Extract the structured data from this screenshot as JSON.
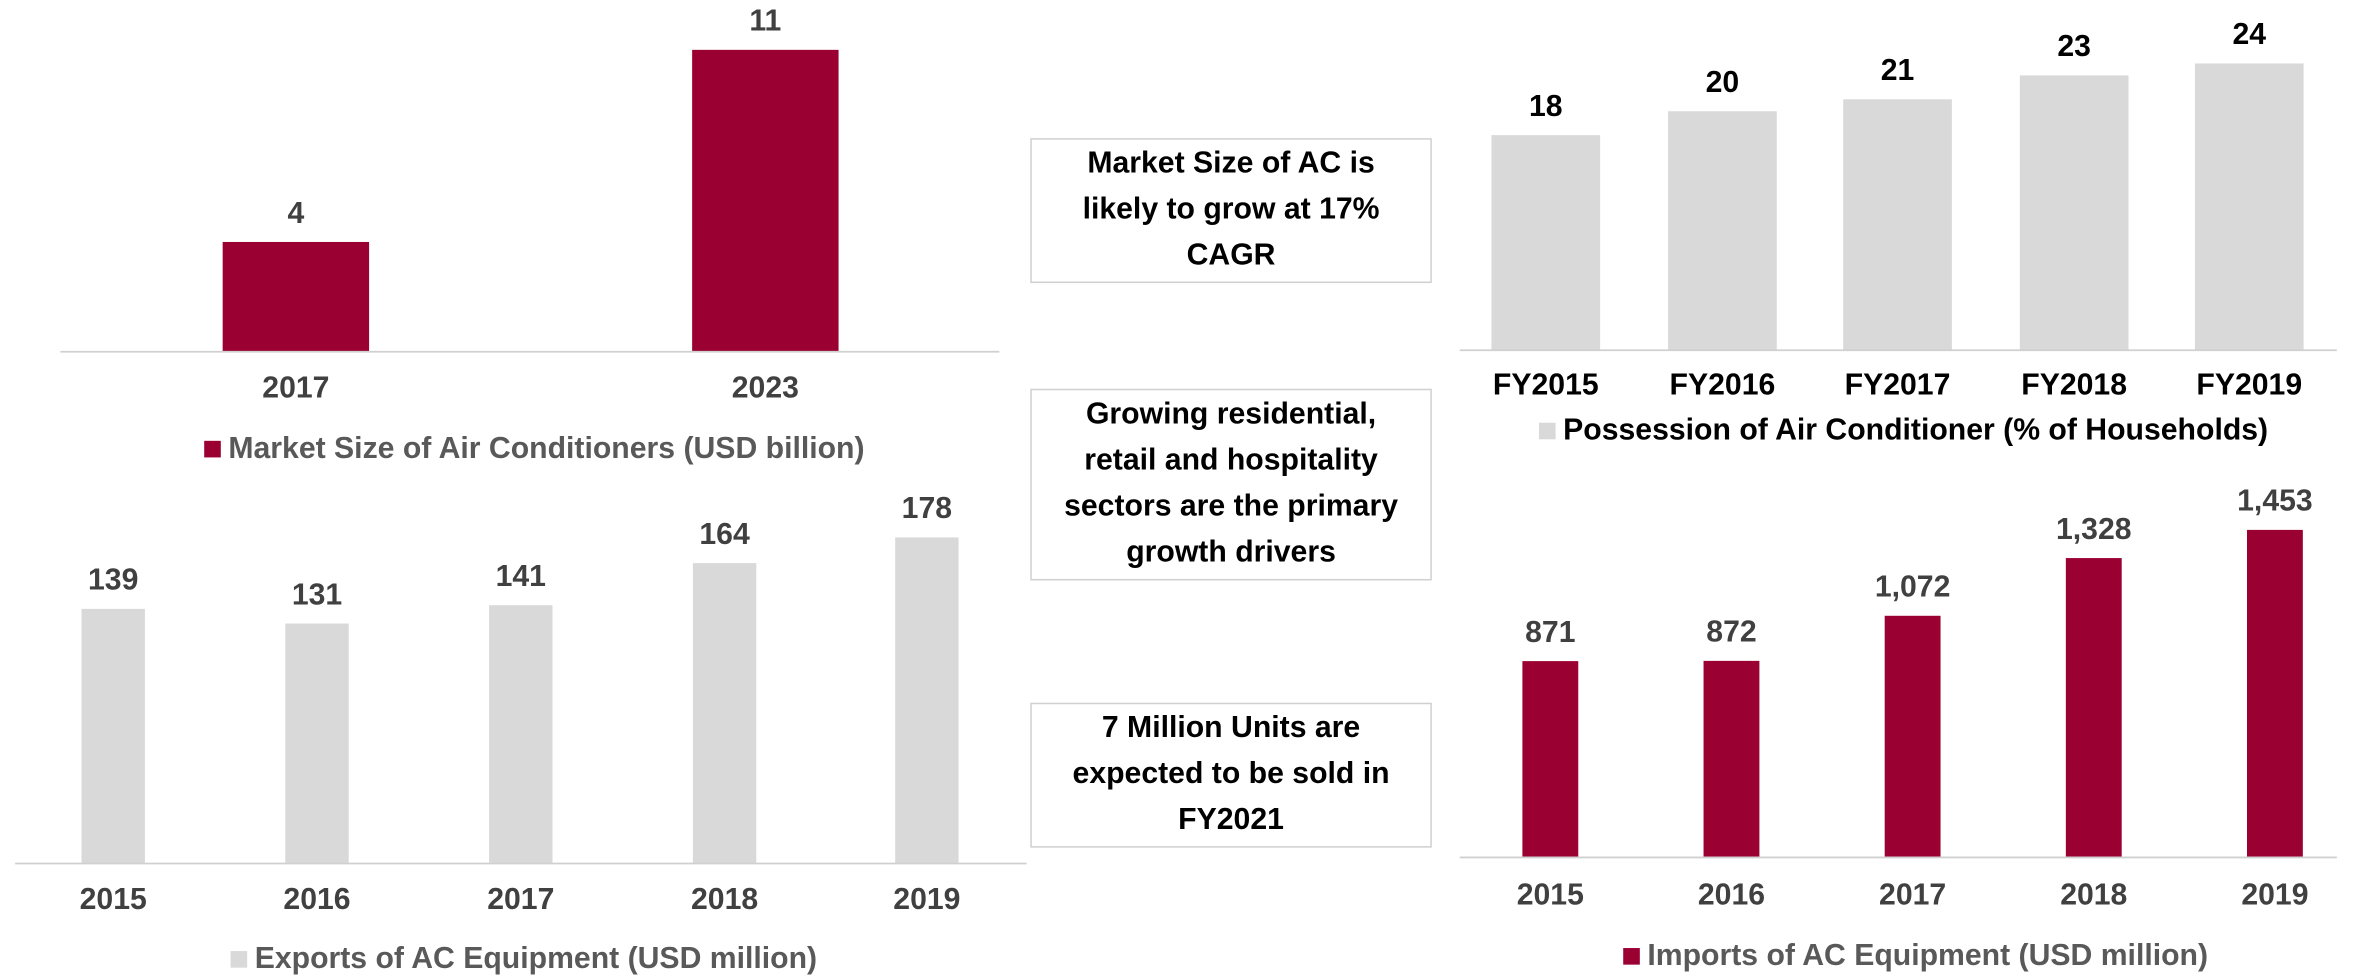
{
  "chart_data": [
    {
      "type": "bar",
      "legend": "Market Size of Air Conditioners (USD billion)",
      "categories": [
        "2017",
        "2023"
      ],
      "values": [
        4,
        11
      ],
      "color": "#9b0033",
      "label_color": "#404040"
    },
    {
      "type": "bar",
      "legend": "Exports of AC Equipment (USD million)",
      "categories": [
        "2015",
        "2016",
        "2017",
        "2018",
        "2019"
      ],
      "values": [
        139,
        131,
        141,
        164,
        178
      ],
      "color": "#d9d9d9",
      "label_color": "#404040"
    },
    {
      "type": "bar",
      "legend": "Possession of Air Conditioner (% of Households)",
      "categories": [
        "FY2015",
        "FY2016",
        "FY2017",
        "FY2018",
        "FY2019"
      ],
      "values": [
        18,
        20,
        21,
        23,
        24
      ],
      "color": "#d9d9d9",
      "label_color": "#000000"
    },
    {
      "type": "bar",
      "legend": "Imports of AC Equipment (USD million)",
      "categories": [
        "2015",
        "2016",
        "2017",
        "2018",
        "2019"
      ],
      "values": [
        871,
        872,
        1072,
        1328,
        1453
      ],
      "value_labels": [
        "871",
        "872",
        "1,072",
        "1,328",
        "1,453"
      ],
      "color": "#9b0033",
      "label_color": "#404040"
    }
  ],
  "notes": [
    {
      "lines": [
        "Market Size of AC is",
        "likely to grow at 17%",
        "CAGR"
      ]
    },
    {
      "lines": [
        "Growing residential,",
        "retail and hospitality",
        "sectors are the primary",
        "growth drivers"
      ]
    },
    {
      "lines": [
        "7 Million Units are",
        "expected to be sold in",
        "FY2021"
      ]
    }
  ]
}
